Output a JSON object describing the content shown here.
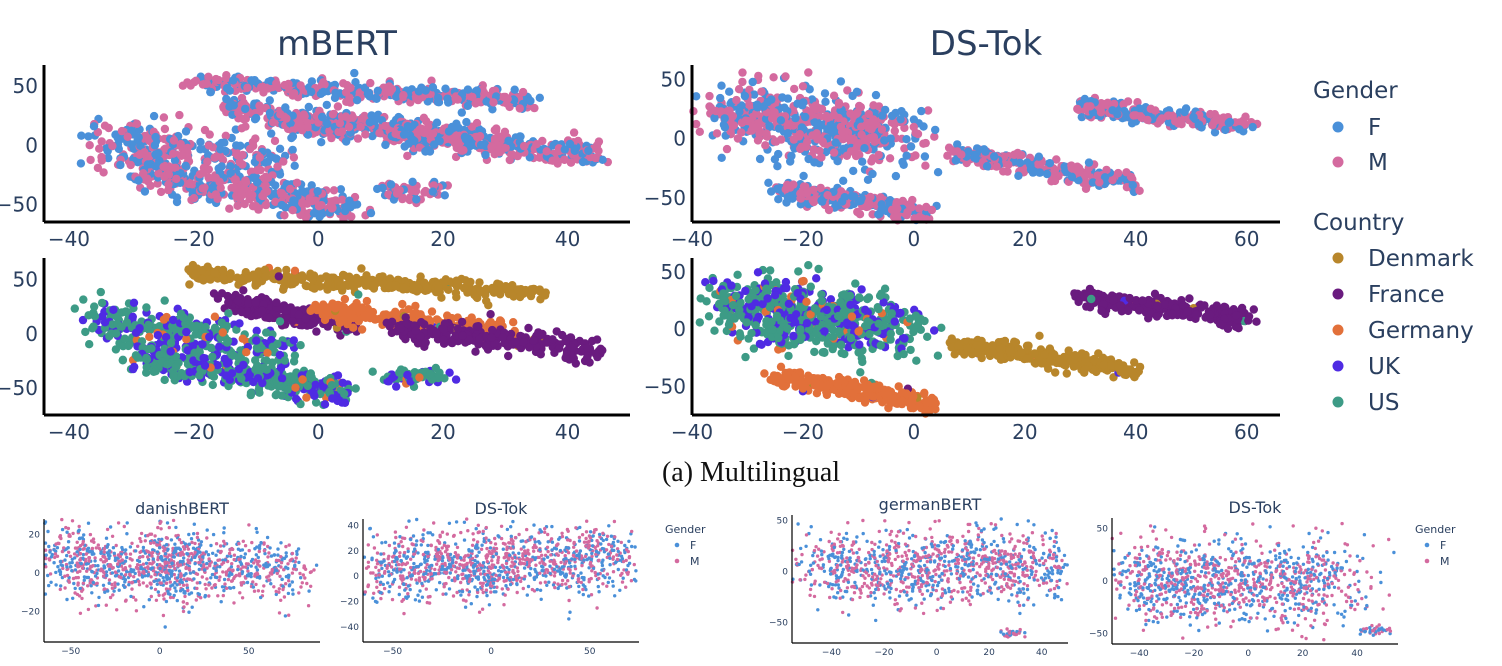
{
  "caption": "(a) Multilingual",
  "colors": {
    "F": "#4a90d9",
    "M": "#d46a9f",
    "Denmark": "#b8862b",
    "France": "#6a1b7f",
    "Germany": "#e2703a",
    "UK": "#4f2be3",
    "US": "#3d9b86"
  },
  "legend": {
    "gender_title": "Gender",
    "gender_items": [
      "F",
      "M"
    ],
    "country_title": "Country",
    "country_items": [
      "Denmark",
      "France",
      "Germany",
      "UK",
      "US"
    ]
  },
  "chart_data": [
    {
      "id": "mbert-gender",
      "type": "scatter",
      "title": "mBERT",
      "color_by": "gender",
      "xlim": [
        -44,
        50
      ],
      "ylim": [
        -65,
        68
      ],
      "xticks": [
        -40,
        -20,
        0,
        20,
        40
      ],
      "yticks": [
        50,
        0,
        -50
      ],
      "series": [
        {
          "name": "F",
          "approx_points": 2000
        },
        {
          "name": "M",
          "approx_points": 2000
        }
      ],
      "clusters": [
        {
          "x": [
            -20,
            35
          ],
          "y": [
            53,
            38
          ],
          "sx": 1.0,
          "sy": 4,
          "n": 340,
          "label": "F/M"
        },
        {
          "x": [
            -15,
            5
          ],
          "y": [
            33,
            10
          ],
          "sx": 1.0,
          "sy": 5,
          "n": 180,
          "label": "F/M"
        },
        {
          "x": [
            0,
            30
          ],
          "y": [
            22,
            5
          ],
          "sx": 1.0,
          "sy": 5,
          "n": 240,
          "label": "F/M"
        },
        {
          "x": [
            12,
            45
          ],
          "y": [
            8,
            -8
          ],
          "sx": 1.0,
          "sy": 5,
          "n": 260,
          "label": "F/M"
        },
        {
          "x": [
            -36,
            -5
          ],
          "y": [
            5,
            -15
          ],
          "sx": 1.5,
          "sy": 10,
          "n": 260,
          "label": "F/M"
        },
        {
          "x": [
            -30,
            5
          ],
          "y": [
            -20,
            -55
          ],
          "sx": 1.5,
          "sy": 7,
          "n": 360,
          "label": "F/M"
        },
        {
          "x": [
            10,
            20
          ],
          "y": [
            -40,
            -38
          ],
          "sx": 1,
          "sy": 4,
          "n": 60,
          "label": "F/M"
        }
      ]
    },
    {
      "id": "dstok-gender",
      "type": "scatter",
      "title": "DS-Tok",
      "color_by": "gender",
      "xlim": [
        -40,
        66
      ],
      "ylim": [
        -70,
        62
      ],
      "xticks": [
        -40,
        -20,
        0,
        20,
        40,
        60
      ],
      "yticks": [
        50,
        0,
        -50
      ],
      "series": [
        {
          "name": "F",
          "approx_points": 2000
        },
        {
          "name": "M",
          "approx_points": 2000
        }
      ],
      "clusters": [
        {
          "x": [
            -33,
            -3
          ],
          "y": [
            20,
            0
          ],
          "sx": 4.5,
          "sy": 14,
          "n": 600,
          "label": "F/M"
        },
        {
          "x": [
            30,
            60
          ],
          "y": [
            27,
            10
          ],
          "sx": 1.0,
          "sy": 4,
          "n": 240,
          "label": "F/M"
        },
        {
          "x": [
            7,
            40
          ],
          "y": [
            -13,
            -37
          ],
          "sx": 1.0,
          "sy": 4,
          "n": 260,
          "label": "F/M"
        },
        {
          "x": [
            -25,
            3
          ],
          "y": [
            -42,
            -63
          ],
          "sx": 1.0,
          "sy": 4,
          "n": 260,
          "label": "F/M"
        }
      ]
    },
    {
      "id": "mbert-country",
      "type": "scatter",
      "title": "",
      "color_by": "country",
      "xlim": [
        -44,
        50
      ],
      "ylim": [
        -75,
        70
      ],
      "xticks": [
        -40,
        -20,
        0,
        20,
        40
      ],
      "yticks": [
        50,
        0,
        -50
      ],
      "series": [
        {
          "name": "Denmark"
        },
        {
          "name": "France"
        },
        {
          "name": "Germany"
        },
        {
          "name": "UK"
        },
        {
          "name": "US"
        }
      ],
      "clusters": [
        {
          "x": [
            -20,
            35
          ],
          "y": [
            55,
            38
          ],
          "sx": 1.0,
          "sy": 4,
          "n": 340,
          "label": "Denmark"
        },
        {
          "x": [
            -15,
            5
          ],
          "y": [
            32,
            8
          ],
          "sx": 1.0,
          "sy": 5,
          "n": 180,
          "label": "France"
        },
        {
          "x": [
            0,
            30
          ],
          "y": [
            22,
            2
          ],
          "sx": 1.0,
          "sy": 5,
          "n": 240,
          "label": "Germany"
        },
        {
          "x": [
            12,
            45
          ],
          "y": [
            5,
            -15
          ],
          "sx": 1.0,
          "sy": 5,
          "n": 260,
          "label": "France"
        },
        {
          "x": [
            -36,
            -5
          ],
          "y": [
            15,
            -15
          ],
          "sx": 1.5,
          "sy": 10,
          "n": 300,
          "label": "US"
        },
        {
          "x": [
            -30,
            5
          ],
          "y": [
            -20,
            -55
          ],
          "sx": 1.5,
          "sy": 7,
          "n": 380,
          "label": "US"
        },
        {
          "x": [
            10,
            20
          ],
          "y": [
            -40,
            -38
          ],
          "sx": 1,
          "sy": 4,
          "n": 60,
          "label": "US"
        }
      ]
    },
    {
      "id": "dstok-country",
      "type": "scatter",
      "title": "",
      "color_by": "country",
      "xlim": [
        -40,
        66
      ],
      "ylim": [
        -75,
        62
      ],
      "xticks": [
        -40,
        -20,
        0,
        20,
        40,
        60
      ],
      "yticks": [
        50,
        0,
        -50
      ],
      "series": [
        {
          "name": "Denmark"
        },
        {
          "name": "France"
        },
        {
          "name": "Germany"
        },
        {
          "name": "UK"
        },
        {
          "name": "US"
        }
      ],
      "clusters": [
        {
          "x": [
            -33,
            -3
          ],
          "y": [
            20,
            0
          ],
          "sx": 4.5,
          "sy": 14,
          "n": 600,
          "label": "US"
        },
        {
          "x": [
            30,
            60
          ],
          "y": [
            27,
            10
          ],
          "sx": 1.0,
          "sy": 4,
          "n": 240,
          "label": "France"
        },
        {
          "x": [
            7,
            40
          ],
          "y": [
            -13,
            -37
          ],
          "sx": 1.0,
          "sy": 4,
          "n": 260,
          "label": "Denmark"
        },
        {
          "x": [
            -25,
            3
          ],
          "y": [
            -42,
            -63
          ],
          "sx": 1.0,
          "sy": 4,
          "n": 260,
          "label": "Germany"
        }
      ]
    },
    {
      "id": "danishbert",
      "type": "scatter",
      "title": "danishBERT",
      "color_by": "gender",
      "xlim": [
        -65,
        90
      ],
      "ylim": [
        -36,
        28
      ],
      "xticks": [
        -50,
        0,
        50
      ],
      "yticks": [
        20,
        0,
        -20
      ],
      "series": [
        {
          "name": "F"
        },
        {
          "name": "M"
        }
      ],
      "clusters": [
        {
          "x": [
            -60,
            20
          ],
          "y": [
            8,
            0
          ],
          "sx": 8,
          "sy": 10,
          "n": 700,
          "label": "F/M"
        },
        {
          "x": [
            0,
            80
          ],
          "y": [
            8,
            0
          ],
          "sx": 6,
          "sy": 8,
          "n": 500,
          "label": "F/M"
        }
      ]
    },
    {
      "id": "dstok-danish",
      "type": "scatter",
      "title": "DS-Tok",
      "color_by": "gender",
      "xlim": [
        -65,
        75
      ],
      "ylim": [
        -52,
        45
      ],
      "xticks": [
        -50,
        0,
        50
      ],
      "yticks": [
        40,
        20,
        0,
        -20,
        -40
      ],
      "series": [
        {
          "name": "F"
        },
        {
          "name": "M"
        }
      ],
      "clusters": [
        {
          "x": [
            -55,
            65
          ],
          "y": [
            5,
            15
          ],
          "sx": 10,
          "sy": 14,
          "n": 1200,
          "label": "F/M"
        }
      ]
    },
    {
      "id": "germanbert",
      "type": "scatter",
      "title": "germanBERT",
      "color_by": "gender",
      "xlim": [
        -55,
        50
      ],
      "ylim": [
        -70,
        55
      ],
      "xticks": [
        -40,
        -20,
        0,
        20,
        40
      ],
      "yticks": [
        50,
        0,
        -50
      ],
      "series": [
        {
          "name": "F"
        },
        {
          "name": "M"
        }
      ],
      "clusters": [
        {
          "x": [
            -45,
            45
          ],
          "y": [
            5,
            5
          ],
          "sx": 10,
          "sy": 18,
          "n": 1100,
          "label": "F/M"
        },
        {
          "x": [
            25,
            32
          ],
          "y": [
            -60,
            -60
          ],
          "sx": 1.5,
          "sy": 2,
          "n": 30,
          "label": "F/M"
        }
      ]
    },
    {
      "id": "dstok-german",
      "type": "scatter",
      "title": "DS-Tok",
      "color_by": "gender",
      "xlim": [
        -50,
        55
      ],
      "ylim": [
        -60,
        60
      ],
      "xticks": [
        -40,
        -20,
        0,
        20,
        40
      ],
      "yticks": [
        50,
        0,
        -50
      ],
      "series": [
        {
          "name": "F"
        },
        {
          "name": "M"
        }
      ],
      "clusters": [
        {
          "x": [
            -45,
            35
          ],
          "y": [
            0,
            0
          ],
          "sx": 9,
          "sy": 20,
          "n": 1100,
          "label": "F/M"
        },
        {
          "x": [
            42,
            49
          ],
          "y": [
            -47,
            -47
          ],
          "sx": 2,
          "sy": 2,
          "n": 40,
          "label": "F/M"
        }
      ]
    }
  ],
  "small_legend": {
    "title": "Gender",
    "items": [
      "F",
      "M"
    ]
  }
}
